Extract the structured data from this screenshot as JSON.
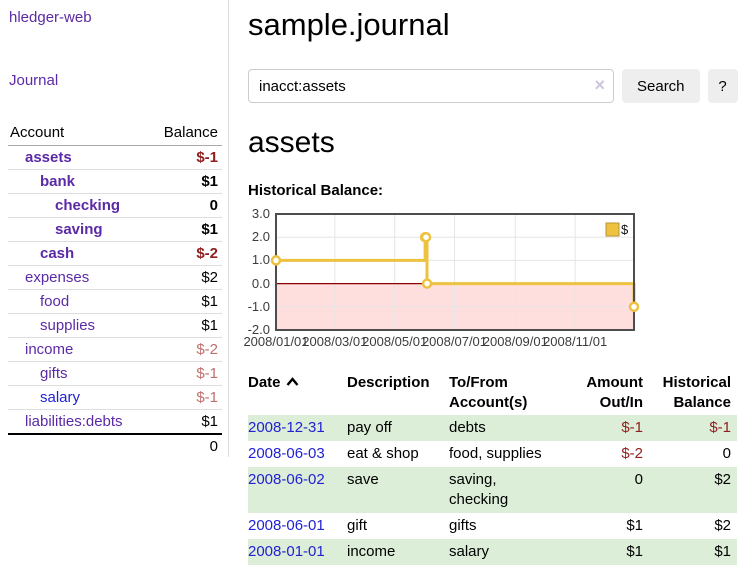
{
  "app": {
    "brand": "hledger-web",
    "nav_journal": "Journal"
  },
  "sidebar": {
    "header": {
      "account": "Account",
      "balance": "Balance"
    },
    "accounts": [
      {
        "name": "assets",
        "depth": 1,
        "in_filter": true,
        "balance": "$-1",
        "neg": true,
        "unvisited": false
      },
      {
        "name": "bank",
        "depth": 2,
        "in_filter": true,
        "balance": "$1",
        "neg": false,
        "unvisited": false
      },
      {
        "name": "checking",
        "depth": 3,
        "in_filter": true,
        "balance": "0",
        "neg": false,
        "unvisited": false
      },
      {
        "name": "saving",
        "depth": 3,
        "in_filter": true,
        "balance": "$1",
        "neg": false,
        "unvisited": false
      },
      {
        "name": "cash",
        "depth": 2,
        "in_filter": true,
        "balance": "$-2",
        "neg": true,
        "unvisited": false
      },
      {
        "name": "expenses",
        "depth": 1,
        "in_filter": false,
        "balance": "$2",
        "neg": false,
        "unvisited": false
      },
      {
        "name": "food",
        "depth": 2,
        "in_filter": false,
        "balance": "$1",
        "neg": false,
        "unvisited": false
      },
      {
        "name": "supplies",
        "depth": 2,
        "in_filter": false,
        "balance": "$1",
        "neg": false,
        "unvisited": false
      },
      {
        "name": "income",
        "depth": 1,
        "in_filter": false,
        "balance": "$-2",
        "neg": true,
        "unvisited": false
      },
      {
        "name": "gifts",
        "depth": 2,
        "in_filter": false,
        "balance": "$-1",
        "neg": true,
        "unvisited": false
      },
      {
        "name": "salary",
        "depth": 2,
        "in_filter": false,
        "balance": "$-1",
        "neg": true,
        "unvisited": true
      },
      {
        "name": "liabilities:debts",
        "depth": 1,
        "in_filter": false,
        "balance": "$1",
        "neg": false,
        "unvisited": false
      }
    ],
    "total": "0"
  },
  "header": {
    "title": "sample.journal"
  },
  "search": {
    "value": "inacct:assets",
    "clear_icon": "×",
    "button": "Search",
    "help_button": "?"
  },
  "account_page": {
    "heading": "assets",
    "chart_title": "Historical Balance:"
  },
  "chart_data": {
    "type": "line",
    "title": "Historical Balance:",
    "step": true,
    "x_type": "date",
    "xrange": [
      "2008-01-01",
      "2008-12-31"
    ],
    "ylim": [
      -2,
      3
    ],
    "series": [
      {
        "name": "$",
        "color": "#edc240",
        "points": [
          [
            "2008-01-01",
            1
          ],
          [
            "2008-06-01",
            2
          ],
          [
            "2008-06-02",
            2
          ],
          [
            "2008-06-03",
            0
          ],
          [
            "2008-12-31",
            -1
          ]
        ]
      }
    ],
    "yticks": [
      {
        "v": 3,
        "label": "3.0"
      },
      {
        "v": 2,
        "label": "2.0"
      },
      {
        "v": 1,
        "label": "1.0"
      },
      {
        "v": 0,
        "label": "0.0"
      },
      {
        "v": -1,
        "label": "-1.0"
      },
      {
        "v": -2,
        "label": "-2.0"
      }
    ],
    "xticks": [
      {
        "d": "2008-01-01",
        "label": "2008/01/01"
      },
      {
        "d": "2008-03-01",
        "label": "2008/03/01"
      },
      {
        "d": "2008-05-01",
        "label": "2008/05/01"
      },
      {
        "d": "2008-07-01",
        "label": "2008/07/01"
      },
      {
        "d": "2008-09-01",
        "label": "2008/09/01"
      },
      {
        "d": "2008-11-01",
        "label": "2008/11/01"
      }
    ],
    "legend": {
      "label": "$",
      "position": "top-right"
    },
    "grid": true,
    "negative_region_color": "rgba(255,0,0,0.13)",
    "zero_line_color": "#8b0000"
  },
  "register": {
    "columns": [
      {
        "lines": [
          "Date"
        ],
        "align": "left",
        "sorted": "asc",
        "sortable": true
      },
      {
        "lines": [
          "Description"
        ],
        "align": "left",
        "sortable": false
      },
      {
        "lines": [
          "To/From",
          "Account(s)"
        ],
        "align": "left",
        "sortable": false
      },
      {
        "lines": [
          "Amount",
          "Out/In"
        ],
        "align": "right",
        "sortable": false
      },
      {
        "lines": [
          "Historical",
          "Balance"
        ],
        "align": "right",
        "sortable": false
      }
    ],
    "rows": [
      {
        "date": "2008-12-31",
        "description": "pay off",
        "accounts": "debts",
        "amount": "$-1",
        "amount_neg": true,
        "balance": "$-1",
        "balance_neg": true
      },
      {
        "date": "2008-06-03",
        "description": "eat & shop",
        "accounts": "food, supplies",
        "amount": "$-2",
        "amount_neg": true,
        "balance": "0",
        "balance_neg": false
      },
      {
        "date": "2008-06-02",
        "description": "save",
        "accounts": "saving, checking",
        "amount": "0",
        "amount_neg": false,
        "balance": "$2",
        "balance_neg": false
      },
      {
        "date": "2008-06-01",
        "description": "gift",
        "accounts": "gifts",
        "amount": "$1",
        "amount_neg": false,
        "balance": "$2",
        "balance_neg": false
      },
      {
        "date": "2008-01-01",
        "description": "income",
        "accounts": "salary",
        "amount": "$1",
        "amount_neg": false,
        "balance": "$1",
        "balance_neg": false
      }
    ]
  }
}
